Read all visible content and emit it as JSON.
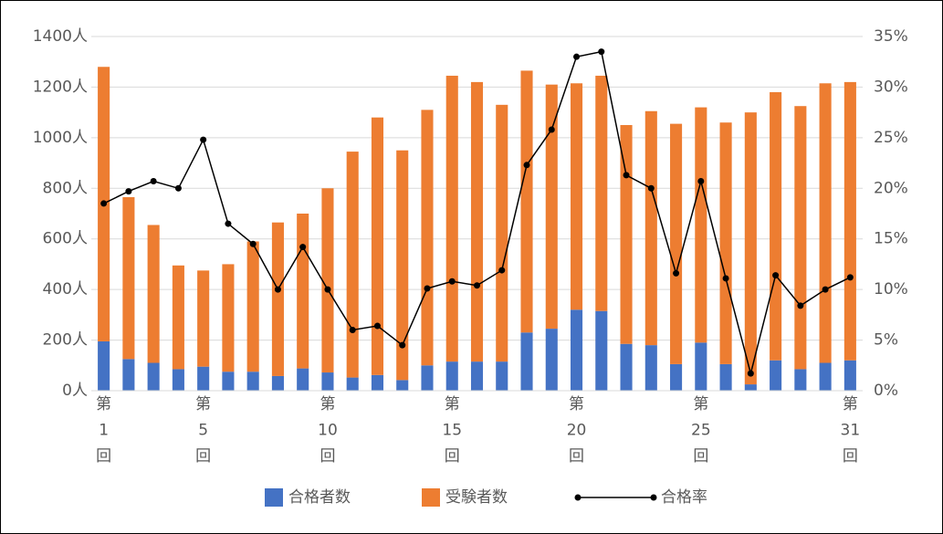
{
  "chart_data": {
    "type": "stacked-bar-line",
    "categories": [
      "第1回",
      null,
      null,
      null,
      "第5回",
      null,
      null,
      null,
      null,
      "第10回",
      null,
      null,
      null,
      null,
      "第15回",
      null,
      null,
      null,
      null,
      "第20回",
      null,
      null,
      null,
      null,
      "第25回",
      null,
      null,
      null,
      null,
      null,
      "第31回"
    ],
    "series": [
      {
        "name": "合格者数",
        "color": "#4472c4",
        "values": [
          195,
          125,
          110,
          85,
          95,
          75,
          75,
          58,
          88,
          72,
          52,
          62,
          42,
          100,
          115,
          115,
          115,
          230,
          245,
          320,
          315,
          185,
          180,
          105,
          190,
          105,
          25,
          120,
          85,
          110,
          120
        ]
      },
      {
        "name": "受験者数",
        "color": "#ed7d31",
        "values": [
          1085,
          640,
          545,
          410,
          380,
          425,
          515,
          607,
          612,
          728,
          893,
          1018,
          908,
          1010,
          1130,
          1105,
          1015,
          1035,
          965,
          895,
          930,
          865,
          925,
          950,
          930,
          955,
          1075,
          1060,
          1040,
          1105,
          1100
        ]
      },
      {
        "name": "合格率",
        "color": "#000000",
        "axis": "y2",
        "values": [
          18.5,
          19.7,
          20.7,
          20.0,
          24.8,
          16.5,
          14.5,
          10.0,
          14.2,
          10.0,
          6.0,
          6.4,
          4.5,
          10.1,
          10.8,
          10.4,
          11.9,
          22.3,
          25.8,
          33.0,
          33.5,
          21.3,
          20.0,
          11.6,
          20.7,
          11.1,
          1.7,
          11.4,
          8.4,
          10.0,
          11.2
        ]
      }
    ],
    "ylim": [
      0,
      1400
    ],
    "yticks": [
      {
        "value": 0,
        "label": "0人"
      },
      {
        "value": 200,
        "label": "200人"
      },
      {
        "value": 400,
        "label": "400人"
      },
      {
        "value": 600,
        "label": "600人"
      },
      {
        "value": 800,
        "label": "800人"
      },
      {
        "value": 1000,
        "label": "1000人"
      },
      {
        "value": 1200,
        "label": "1200人"
      },
      {
        "value": 1400,
        "label": "1400人"
      }
    ],
    "y2lim": [
      0,
      35
    ],
    "y2ticks": [
      {
        "value": 0,
        "label": "0%"
      },
      {
        "value": 5,
        "label": "5%"
      },
      {
        "value": 10,
        "label": "10%"
      },
      {
        "value": 15,
        "label": "15%"
      },
      {
        "value": 20,
        "label": "20%"
      },
      {
        "value": 25,
        "label": "25%"
      },
      {
        "value": 30,
        "label": "30%"
      },
      {
        "value": 35,
        "label": "35%"
      }
    ],
    "grid": true
  }
}
